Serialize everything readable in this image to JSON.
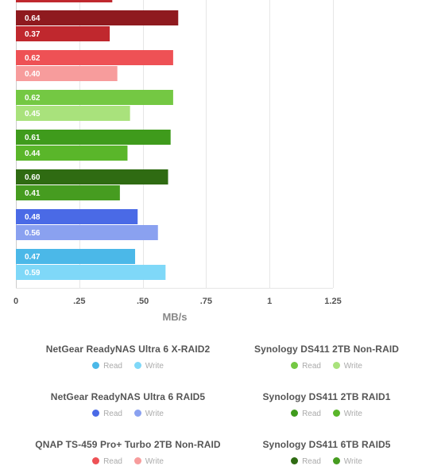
{
  "chart_data": {
    "type": "bar",
    "orientation": "horizontal",
    "xlabel": "MB/s",
    "xlim": [
      0,
      1.25
    ],
    "xticks": [
      "0",
      ".25",
      ".50",
      ".75",
      "1",
      "1.25"
    ],
    "tick_values": [
      0,
      0.25,
      0.5,
      0.75,
      1,
      1.25
    ],
    "grid": true,
    "groups": [
      {
        "name": "QNAP TS-459 Pro+ Turbo 2TB Non-RAID",
        "bars": [
          {
            "series": "Read",
            "value": 0.64,
            "label": "0.64",
            "color": "#8f1a1f"
          },
          {
            "series": "Write",
            "value": 0.37,
            "label": "0.37",
            "color": "#c0282e"
          }
        ]
      },
      {
        "name": "",
        "bars": [
          {
            "series": "Read",
            "value": 0.62,
            "label": "0.62",
            "color": "#ee5155"
          },
          {
            "series": "Write",
            "value": 0.4,
            "label": "0.40",
            "color": "#f79c9c"
          }
        ]
      },
      {
        "name": "Synology DS411 2TB Non-RAID",
        "bars": [
          {
            "series": "Read",
            "value": 0.62,
            "label": "0.62",
            "color": "#74c843"
          },
          {
            "series": "Write",
            "value": 0.45,
            "label": "0.45",
            "color": "#a9e27c"
          }
        ]
      },
      {
        "name": "Synology DS411 2TB RAID1",
        "bars": [
          {
            "series": "Read",
            "value": 0.61,
            "label": "0.61",
            "color": "#3f9b1c"
          },
          {
            "series": "Write",
            "value": 0.44,
            "label": "0.44",
            "color": "#5ab62a"
          }
        ]
      },
      {
        "name": "Synology DS411 6TB RAID5",
        "bars": [
          {
            "series": "Read",
            "value": 0.6,
            "label": "0.60",
            "color": "#2f6b12"
          },
          {
            "series": "Write",
            "value": 0.41,
            "label": "0.41",
            "color": "#469c20"
          }
        ]
      },
      {
        "name": "NetGear ReadyNAS Ultra 6 RAID5",
        "bars": [
          {
            "series": "Read",
            "value": 0.48,
            "label": "0.48",
            "color": "#4a6ae6"
          },
          {
            "series": "Write",
            "value": 0.56,
            "label": "0.56",
            "color": "#8aa1f0"
          }
        ]
      },
      {
        "name": "NetGear ReadyNAS Ultra 6 X-RAID2",
        "bars": [
          {
            "series": "Read",
            "value": 0.47,
            "label": "0.47",
            "color": "#4bb8e8"
          },
          {
            "series": "Write",
            "value": 0.59,
            "label": "0.59",
            "color": "#7fd8f8"
          }
        ]
      }
    ],
    "partial_top_bar": {
      "value": 0.38,
      "color": "#c0282e"
    }
  },
  "legend": [
    {
      "title": "NetGear ReadyNAS Ultra 6 X-RAID2",
      "read": "Read",
      "write": "Write",
      "read_color": "#4bb8e8",
      "write_color": "#7fd8f8"
    },
    {
      "title": "Synology DS411 2TB Non-RAID",
      "read": "Read",
      "write": "Write",
      "read_color": "#74c843",
      "write_color": "#a9e27c"
    },
    {
      "title": "NetGear ReadyNAS Ultra 6 RAID5",
      "read": "Read",
      "write": "Write",
      "read_color": "#4a6ae6",
      "write_color": "#8aa1f0"
    },
    {
      "title": "Synology DS411 2TB RAID1",
      "read": "Read",
      "write": "Write",
      "read_color": "#3f9b1c",
      "write_color": "#5ab62a"
    },
    {
      "title": "QNAP TS-459 Pro+ Turbo 2TB Non-RAID",
      "read": "Read",
      "write": "Write",
      "read_color": "#ee5155",
      "write_color": "#f79c9c"
    },
    {
      "title": "Synology DS411 6TB RAID5",
      "read": "Read",
      "write": "Write",
      "read_color": "#2f6b12",
      "write_color": "#469c20"
    }
  ]
}
